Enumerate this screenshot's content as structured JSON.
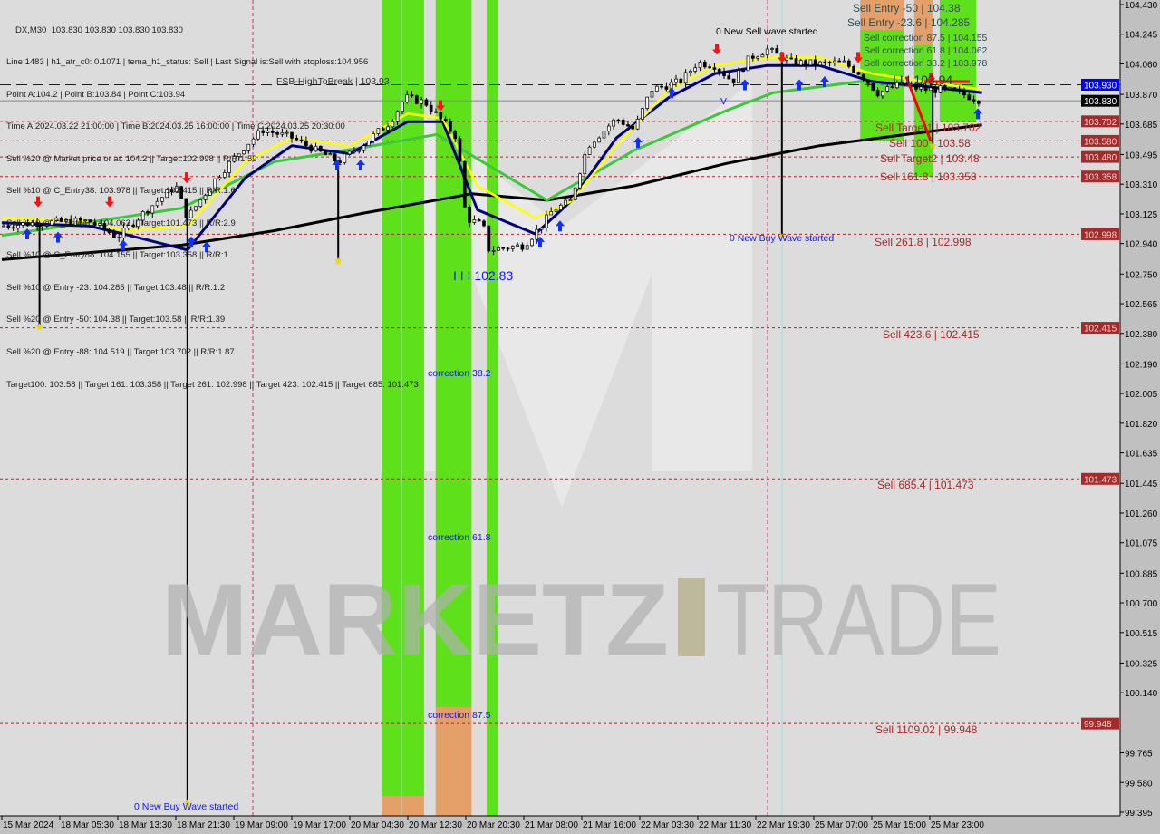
{
  "header": {
    "symbol_line": "DX,M30  103.830 103.830 103.830 103.830",
    "info_lines": [
      "Line:1483 | h1_atr_c0: 0.1071 | tema_h1_status: Sell | Last Signal is:Sell with stoploss:104.956",
      "Point A:104.2 | Point B:103.84 | Point C:103.94",
      "Time A:2024.03.22 21:00:00 | Time B:2024.03.25 16:00:00 | Time C:2024.03.25 20:30:00",
      "Sell %20 @ Market price or at: 104.2 || Target:102.998 || R/R:1.59",
      "Sell %10 @ C_Entry38: 103.978 || Target:102.415 || R/R:1.6",
      "Sell %10 @ C_Entry61: 104.062 || Target:101.473 || R/R:2.9",
      "Sell %10 @ C_Entry88: 104.155 || Target:103.358 || R/R:1",
      "Sell %10 @ Entry -23: 104.285 || Target:103.48 || R/R:1.2",
      "Sell %20 @ Entry -50: 104.38 || Target:103.58 || R/R:1.39",
      "Sell %20 @ Entry -88: 104.519 || Target:103.702 || R/R:1.87",
      "Target100: 103.58 || Target 161: 103.358 || Target 261: 102.998 || Target 423: 102.415 || Target 685: 101.473"
    ],
    "fsb_label": "FSB-HighToBreak | 103.93"
  },
  "watermark": {
    "left": "MARKETZ",
    "right": "TRADE"
  },
  "annotations": {
    "new_sell_wave": "0 New Sell wave started",
    "new_buy_wave_1": "0 New Buy Wave started",
    "new_buy_wave_2": "0 New Buy Wave started",
    "wave_label_low": "I I I 102.83",
    "wave_label_high": "I I I 103.94",
    "wave_v": "V",
    "correction_38": "correction 38.2",
    "correction_61": "correction 61.8",
    "correction_87": "correction 87.5",
    "sell_entry_50": "Sell Entry -50 | 104.38",
    "sell_entry_23": "Sell Entry -23.6 | 104.285",
    "sell_corr_87": "Sell correction 87.5 | 104.155",
    "sell_corr_61": "Sell correction 61.8 | 104.062",
    "sell_corr_38": "Sell correction 38.2 | 103.978",
    "sell_target1": "Sell Target1 | 103.702",
    "sell_100": "Sell 100 | 103.58",
    "sell_target2": "Sell Target2 | 103.48",
    "sell_161": "Sell 161.8 | 103.358",
    "sell_261": "Sell  261.8 | 102.998",
    "sell_423": "Sell  423.6 | 102.415",
    "sell_685": "Sell  685.4 | 101.473",
    "sell_1109": "Sell 1109.02 | 99.948"
  },
  "colors": {
    "background": "#dcdcdc",
    "axis_bg": "#c0c0c0",
    "band_green": "#5ee01a",
    "band_orange": "#e5a06a",
    "level_red": "#a52a2a",
    "fsb_blue": "#0000ff",
    "current_price": "#000000",
    "ma_black": "#000000",
    "ma_green": "#3cc83c",
    "ma_blue": "#000080",
    "ma_yellow": "#ffff00"
  },
  "chart_data": {
    "type": "candlestick",
    "title": "DX,M30",
    "ylim": [
      99.395,
      104.43
    ],
    "y_ticks": [
      "104.430",
      "104.245",
      "104.060",
      "103.870",
      "103.685",
      "103.495",
      "103.310",
      "103.125",
      "102.940",
      "102.750",
      "102.565",
      "102.380",
      "102.190",
      "102.005",
      "101.820",
      "101.635",
      "101.445",
      "101.260",
      "101.075",
      "100.885",
      "100.700",
      "100.515",
      "100.325",
      "100.140",
      "99.765",
      "99.580",
      "99.395"
    ],
    "x_ticks": [
      "15 Mar 2024",
      "18 Mar 05:30",
      "18 Mar 13:30",
      "18 Mar 21:30",
      "19 Mar 09:00",
      "19 Mar 17:00",
      "20 Mar 04:30",
      "20 Mar 12:30",
      "20 Mar 20:30",
      "21 Mar 08:00",
      "21 Mar 16:00",
      "22 Mar 03:30",
      "22 Mar 11:30",
      "22 Mar 19:30",
      "25 Mar 07:00",
      "25 Mar 15:00",
      "25 Mar 23:00"
    ],
    "price_labels": [
      {
        "value": "103.930",
        "kind": "fsb",
        "color": "#0000ff"
      },
      {
        "value": "103.830",
        "kind": "current",
        "color": "#000000"
      },
      {
        "value": "103.702",
        "kind": "level",
        "color": "#a52a2a"
      },
      {
        "value": "103.580",
        "kind": "level",
        "color": "#a52a2a"
      },
      {
        "value": "103.480",
        "kind": "level",
        "color": "#a52a2a"
      },
      {
        "value": "103.358",
        "kind": "level",
        "color": "#a52a2a"
      },
      {
        "value": "102.998",
        "kind": "level",
        "color": "#a52a2a"
      },
      {
        "value": "102.415",
        "kind": "level",
        "color": "#a52a2a"
      },
      {
        "value": "101.473",
        "kind": "level",
        "color": "#a52a2a"
      },
      {
        "value": "99.948",
        "kind": "level",
        "color": "#a52a2a"
      }
    ],
    "close_series": {
      "x_tick_index": [
        0,
        0.6,
        1.5,
        2,
        2.5,
        3,
        3.2,
        3.7,
        4.2,
        4.5,
        5,
        5.8,
        6.2,
        6.7,
        6.95,
        7.3,
        7.6,
        7.85,
        8,
        8.3,
        8.4,
        9,
        9.3,
        9.5,
        9.8,
        10.1,
        10.6,
        10.9,
        11.2,
        11.7,
        12,
        12.3,
        12.6,
        12.9,
        13.2,
        13.6,
        14.1,
        14.5,
        14.8,
        15.1,
        15.5,
        15.9,
        16.2,
        16.5,
        16.9
      ],
      "close": [
        103.05,
        103.07,
        103.08,
        102.98,
        103.15,
        103.3,
        103.1,
        103.35,
        103.55,
        103.65,
        103.6,
        103.45,
        103.55,
        103.7,
        103.85,
        103.82,
        103.7,
        103.6,
        103.1,
        103.05,
        102.9,
        102.93,
        103.05,
        103.15,
        103.2,
        103.55,
        103.72,
        103.65,
        103.9,
        103.95,
        104.07,
        104.05,
        103.95,
        104.1,
        104.15,
        104.07,
        104.06,
        104.07,
        104.0,
        103.88,
        103.93,
        103.9,
        103.9,
        103.88,
        103.83
      ]
    },
    "long_wicks": [
      {
        "x_tick_index": 0.65,
        "low": 102.42
      },
      {
        "x_tick_index": 3.2,
        "low": 99.45
      },
      {
        "x_tick_index": 5.8,
        "low": 102.83
      },
      {
        "x_tick_index": 13.45,
        "low": 102.98
      },
      {
        "x_tick_index": 16.05,
        "low": 103.55
      }
    ],
    "series": [
      {
        "color": "#000000",
        "x_tick_index": [
          0,
          3.1,
          4.7,
          6.25,
          8.1,
          9.4,
          10.9,
          12.5,
          14.1,
          15.6,
          16.9
        ],
        "values": [
          102.84,
          102.93,
          103.02,
          103.13,
          103.25,
          103.21,
          103.3,
          103.44,
          103.55,
          103.62,
          103.68
        ]
      },
      {
        "color": "#3cc83c",
        "x_tick_index": [
          0,
          3.1,
          4.7,
          6.25,
          7.5,
          9.4,
          10.9,
          12.5,
          13.3,
          14.8,
          16.9
        ],
        "values": [
          102.99,
          103.16,
          103.45,
          103.54,
          103.62,
          103.21,
          103.52,
          103.77,
          103.88,
          103.95,
          103.88
        ]
      },
      {
        "color": "#000080",
        "x_tick_index": [
          0,
          1.5,
          2.1,
          3.2,
          4.2,
          5,
          6,
          7,
          7.6,
          8.2,
          9.2,
          9.8,
          10.6,
          11.5,
          12.3,
          13.2,
          14.1,
          15,
          15.9,
          16.9
        ],
        "values": [
          103.07,
          103.05,
          103.0,
          102.9,
          103.35,
          103.55,
          103.5,
          103.7,
          103.7,
          103.15,
          103.0,
          103.2,
          103.6,
          103.85,
          104.0,
          104.05,
          104.05,
          103.95,
          103.92,
          103.88
        ]
      },
      {
        "color": "#ffff00",
        "x_tick_index": [
          0,
          1.5,
          2.1,
          3.2,
          4.2,
          5,
          6,
          7,
          7.6,
          8.2,
          9.2,
          9.8,
          10.6,
          11.5,
          12.3,
          13.2,
          14.1,
          15,
          15.9,
          16.9
        ],
        "values": [
          103.1,
          103.08,
          103.02,
          103.05,
          103.45,
          103.6,
          103.55,
          103.75,
          103.72,
          103.3,
          103.1,
          103.2,
          103.55,
          103.9,
          104.05,
          104.1,
          104.1,
          104.0,
          103.95,
          103.9
        ]
      }
    ],
    "bands": [
      {
        "color": "green",
        "from_tick": 6.55,
        "to_tick": 7.28
      },
      {
        "color": "green",
        "from_tick": 7.48,
        "to_tick": 8.1
      },
      {
        "color": "green",
        "from_tick": 8.36,
        "to_tick": 8.55
      },
      {
        "color": "orange",
        "from_tick": 14.8,
        "to_tick": 15.55
      },
      {
        "color": "orange",
        "from_tick": 15.73,
        "to_tick": 16.05
      },
      {
        "color": "green",
        "from_tick": 16.17,
        "to_tick": 16.8
      }
    ],
    "grid": false
  }
}
